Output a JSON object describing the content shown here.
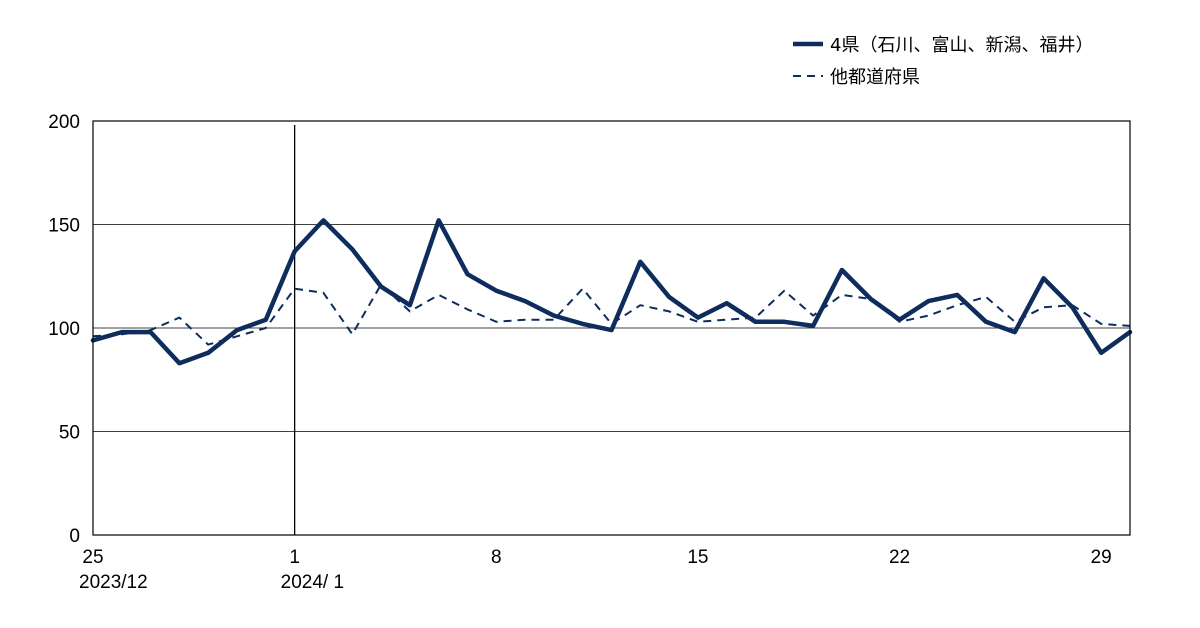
{
  "chart_data": {
    "type": "line",
    "title": "",
    "xlabel": "",
    "ylabel": "",
    "ylim": [
      0,
      200
    ],
    "yticks": [
      0,
      50,
      100,
      150,
      200
    ],
    "grid": true,
    "legend_position": "top-right",
    "x": [
      25,
      26,
      27,
      28,
      29,
      30,
      31,
      1,
      2,
      3,
      4,
      5,
      6,
      7,
      8,
      9,
      10,
      11,
      12,
      13,
      14,
      15,
      16,
      17,
      18,
      19,
      20,
      21,
      22,
      23,
      24,
      25,
      26,
      27,
      28,
      29,
      30
    ],
    "x_tick_labels": [
      {
        "index": 0,
        "label": "25",
        "sublabel": "2023/12"
      },
      {
        "index": 7,
        "label": "1",
        "sublabel": "2024/ 1"
      },
      {
        "index": 14,
        "label": "8"
      },
      {
        "index": 21,
        "label": "15"
      },
      {
        "index": 28,
        "label": "22"
      },
      {
        "index": 35,
        "label": "29"
      }
    ],
    "month_divider_index": 7,
    "series": [
      {
        "name": "4県（石川、富山、新潟、福井）",
        "style": "solid",
        "color": "#0e2d5c",
        "values": [
          94,
          98,
          98,
          83,
          88,
          99,
          104,
          137,
          152,
          138,
          120,
          111,
          152,
          126,
          118,
          113,
          106,
          102,
          99,
          132,
          115,
          105,
          112,
          103,
          103,
          101,
          128,
          114,
          104,
          113,
          116,
          103,
          98,
          124,
          110,
          88,
          98
        ]
      },
      {
        "name": "他都道府県",
        "style": "dashed",
        "color": "#0e2d5c",
        "values": [
          96,
          97,
          99,
          105,
          92,
          96,
          100,
          119,
          117,
          97,
          121,
          108,
          116,
          109,
          103,
          104,
          104,
          119,
          102,
          111,
          108,
          103,
          104,
          105,
          118,
          106,
          116,
          114,
          103,
          106,
          111,
          115,
          103,
          110,
          111,
          102,
          101
        ]
      }
    ]
  }
}
